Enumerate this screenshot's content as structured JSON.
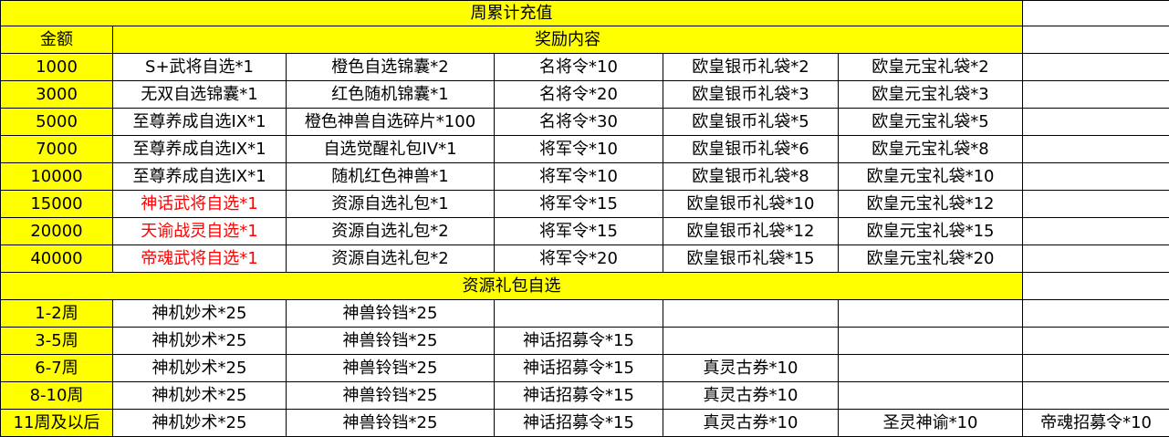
{
  "title": "周累计充值",
  "header": {
    "amount": "金额",
    "rewards": "奖励内容"
  },
  "colors": {
    "highlight": "#ffff00",
    "special_text": "#ff0000"
  },
  "recharge_rows": [
    {
      "amount": "1000",
      "items": [
        "S+武将自选*1",
        "橙色自选锦囊*2",
        "名将令*10",
        "欧皇银币礼袋*2",
        "欧皇元宝礼袋*2"
      ],
      "red": false
    },
    {
      "amount": "3000",
      "items": [
        "无双自选锦囊*1",
        "红色随机锦囊*1",
        "名将令*20",
        "欧皇银币礼袋*3",
        "欧皇元宝礼袋*3"
      ],
      "red": false
    },
    {
      "amount": "5000",
      "items": [
        "至尊养成自选IX*1",
        "橙色神兽自选碎片*100",
        "名将令*30",
        "欧皇银币礼袋*5",
        "欧皇元宝礼袋*5"
      ],
      "red": false
    },
    {
      "amount": "7000",
      "items": [
        "至尊养成自选IX*1",
        "自选觉醒礼包IV*1",
        "将军令*10",
        "欧皇银币礼袋*6",
        "欧皇元宝礼袋*8"
      ],
      "red": false
    },
    {
      "amount": "10000",
      "items": [
        "至尊养成自选IX*1",
        "随机红色神兽*1",
        "将军令*10",
        "欧皇银币礼袋*8",
        "欧皇元宝礼袋*10"
      ],
      "red": false
    },
    {
      "amount": "15000",
      "items": [
        "神话武将自选*1",
        "资源自选礼包*1",
        "将军令*15",
        "欧皇银币礼袋*10",
        "欧皇元宝礼袋*12"
      ],
      "red": true
    },
    {
      "amount": "20000",
      "items": [
        "天谕战灵自选*1",
        "资源自选礼包*2",
        "将军令*15",
        "欧皇银币礼袋*12",
        "欧皇元宝礼袋*15"
      ],
      "red": true
    },
    {
      "amount": "40000",
      "items": [
        "帝魂武将自选*1",
        "资源自选礼包*2",
        "将军令*20",
        "欧皇银币礼袋*15",
        "欧皇元宝礼袋*20"
      ],
      "red": true
    }
  ],
  "section2_title": "资源礼包自选",
  "weekly_rows": [
    {
      "week": "1-2周",
      "items": [
        "神机妙术*25",
        "神兽铃铛*25",
        "",
        "",
        "",
        ""
      ]
    },
    {
      "week": "3-5周",
      "items": [
        "神机妙术*25",
        "神兽铃铛*25",
        "神话招募令*15",
        "",
        "",
        ""
      ]
    },
    {
      "week": "6-7周",
      "items": [
        "神机妙术*25",
        "神兽铃铛*25",
        "神话招募令*15",
        "真灵古券*10",
        "",
        ""
      ]
    },
    {
      "week": "8-10周",
      "items": [
        "神机妙术*25",
        "神兽铃铛*25",
        "神话招募令*15",
        "真灵古券*10",
        "",
        ""
      ]
    },
    {
      "week": "11周及以后",
      "items": [
        "神机妙术*25",
        "神兽铃铛*25",
        "神话招募令*15",
        "真灵古券*10",
        "圣灵神谕*10",
        "帝魂招募令*10"
      ]
    }
  ]
}
